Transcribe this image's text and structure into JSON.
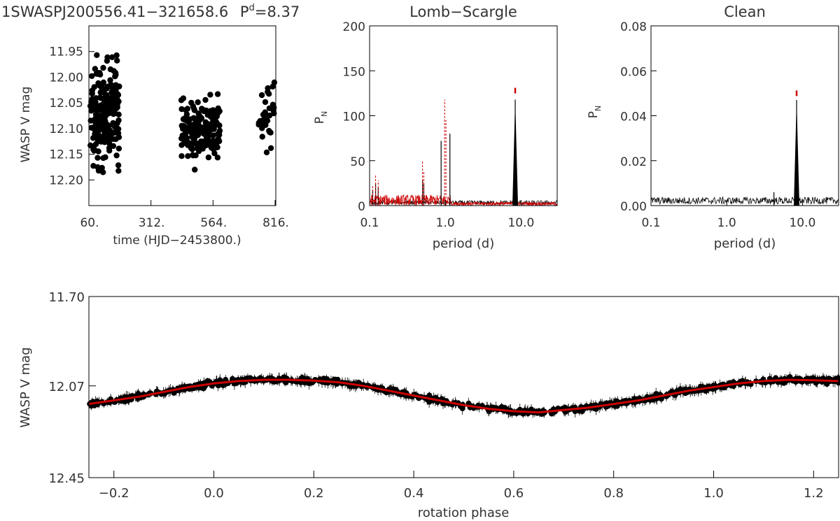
{
  "header": {
    "star": "1SWASPJ200556.41−321658.6",
    "period_prefix": "P",
    "period_sup": "d",
    "period_value": "=8.37"
  },
  "chart_data": [
    {
      "id": "lightcurve",
      "type": "scatter",
      "title": "",
      "xlabel": "time (HJD−2453800.)",
      "ylabel": "WASP V mag",
      "xlim": [
        60,
        830
      ],
      "ylim": [
        12.25,
        11.9
      ],
      "y_inverted": true,
      "x_ticks": [
        "60.",
        "312.",
        "564.",
        "816."
      ],
      "y_ticks": [
        "11.95",
        "12.00",
        "12.05",
        "12.10",
        "12.15",
        "12.20"
      ],
      "color": "#000000",
      "seasons": [
        {
          "x_range": [
            60,
            185
          ],
          "y_range": [
            11.94,
            12.2
          ]
        },
        {
          "x_range": [
            440,
            600
          ],
          "y_range": [
            12.03,
            12.18
          ]
        },
        {
          "x_range": [
            760,
            830
          ],
          "y_range": [
            11.99,
            12.16
          ]
        }
      ]
    },
    {
      "id": "lomb-scargle",
      "type": "line",
      "title": "Lomb−Scargle",
      "xlabel": "period (d)",
      "ylabel": "P",
      "ylabel_sub": "N",
      "x_scale": "log",
      "xlim": [
        0.1,
        30
      ],
      "ylim": [
        0,
        200
      ],
      "x_ticks": [
        "0.1",
        "1.0",
        "10.0"
      ],
      "y_ticks": [
        "0",
        "50",
        "100",
        "150",
        "200"
      ],
      "series": [
        {
          "color": "#000000",
          "x": [
            0.11,
            0.12,
            0.13,
            0.5,
            0.52,
            0.88,
            1.15,
            8.37
          ],
          "y": [
            18,
            25,
            20,
            28,
            24,
            72,
            80,
            118
          ]
        },
        {
          "color": "#cc0000",
          "x": [
            0.11,
            0.12,
            0.13,
            0.5,
            0.52,
            0.98,
            1.02
          ],
          "y": [
            22,
            35,
            28,
            50,
            38,
            118,
            95
          ]
        }
      ],
      "peak_marker": {
        "x": 8.37,
        "y": 128,
        "color": "#cc0000"
      },
      "threshold": {
        "y": 3,
        "color": "#cc0000"
      }
    },
    {
      "id": "clean",
      "type": "line",
      "title": "Clean",
      "xlabel": "period (d)",
      "ylabel": "P",
      "ylabel_sub": "N",
      "x_scale": "log",
      "xlim": [
        0.1,
        30
      ],
      "ylim": [
        0,
        0.08
      ],
      "x_ticks": [
        "0.1",
        "1.0",
        "10.0"
      ],
      "y_ticks": [
        "0.00",
        "0.02",
        "0.04",
        "0.06",
        "0.08"
      ],
      "series": [
        {
          "color": "#000000",
          "x": [
            4.2,
            8.37
          ],
          "y": [
            0.006,
            0.047
          ]
        }
      ],
      "noise_level": 0.002,
      "peak_marker": {
        "x": 8.37,
        "y": 0.05,
        "color": "#cc0000"
      }
    },
    {
      "id": "phase-fold",
      "type": "scatter",
      "title": "",
      "xlabel": "rotation phase",
      "ylabel": "WASP V mag",
      "xlim": [
        -0.25,
        1.25
      ],
      "ylim": [
        12.45,
        11.7
      ],
      "y_inverted": true,
      "x_ticks": [
        "−0.2",
        "0.0",
        "0.2",
        "0.4",
        "0.6",
        "0.8",
        "1.0",
        "1.2"
      ],
      "y_ticks": [
        "11.70",
        "12.07",
        "12.45"
      ],
      "points_color": "#000000",
      "model": {
        "color": "#cc0000",
        "phase": [
          -0.25,
          -0.2,
          -0.15,
          -0.1,
          -0.05,
          0.0,
          0.05,
          0.1,
          0.15,
          0.2,
          0.25,
          0.3,
          0.35,
          0.4,
          0.45,
          0.5,
          0.55,
          0.6,
          0.65,
          0.7,
          0.75,
          0.8,
          0.85,
          0.9,
          0.95,
          1.0,
          1.05,
          1.1,
          1.15,
          1.2,
          1.25
        ],
        "mag": [
          12.145,
          12.13,
          12.115,
          12.095,
          12.075,
          12.06,
          12.05,
          12.045,
          12.045,
          12.048,
          12.055,
          12.07,
          12.09,
          12.11,
          12.13,
          12.15,
          12.165,
          12.175,
          12.18,
          12.17,
          12.16,
          12.145,
          12.13,
          12.11,
          12.09,
          12.075,
          12.06,
          12.05,
          12.045,
          12.047,
          12.05
        ]
      }
    }
  ]
}
